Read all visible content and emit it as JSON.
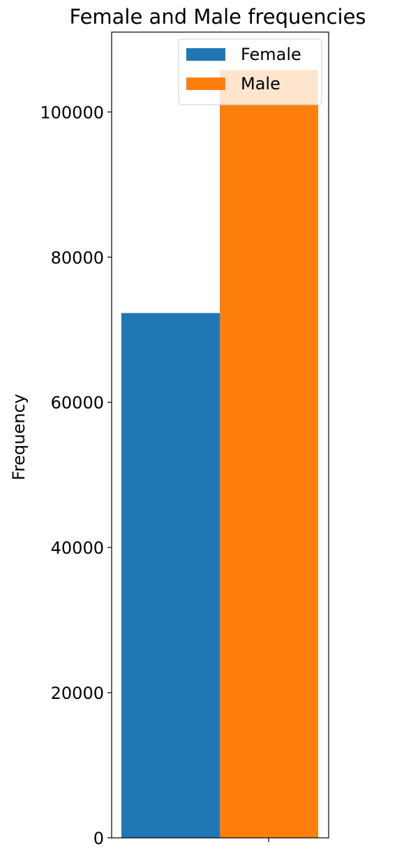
{
  "chart_data": {
    "type": "bar",
    "title": "Female and Male frequencies",
    "xlabel": "",
    "ylabel": "Frequency",
    "categories": [
      ""
    ],
    "series": [
      {
        "name": "Female",
        "values": [
          72300
        ],
        "color": "#1f77b4"
      },
      {
        "name": "Male",
        "values": [
          105800
        ],
        "color": "#ff7f0e"
      }
    ],
    "ylim": [
      0,
      111000
    ],
    "yticks": [
      0,
      20000,
      40000,
      60000,
      80000,
      100000
    ],
    "grid": false,
    "legend": {
      "placement": "top-right"
    }
  }
}
